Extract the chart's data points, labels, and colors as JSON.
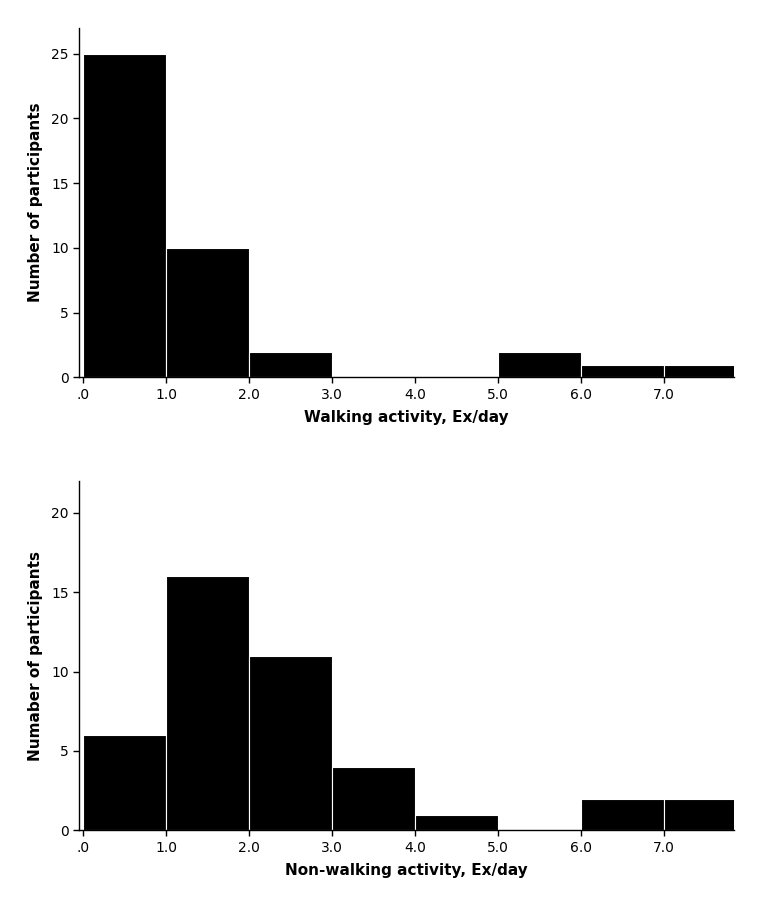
{
  "chart1": {
    "values": [
      25,
      10,
      2,
      0,
      0,
      2,
      1,
      1
    ],
    "xlabel": "Walking activity, Ex/day",
    "ylabel": "Number of participants",
    "ylim": [
      0,
      27
    ],
    "yticks": [
      0,
      5,
      10,
      15,
      20,
      25
    ],
    "xtick_labels": [
      ".0",
      "1.0",
      "2.0",
      "3.0",
      "4.0",
      "5.0",
      "6.0",
      "7.0"
    ],
    "xtick_positions": [
      0,
      1,
      2,
      3,
      4,
      5,
      6,
      7
    ],
    "xlim": [
      -0.05,
      7.85
    ]
  },
  "chart2": {
    "values": [
      6,
      16,
      11,
      4,
      1,
      0,
      2,
      2
    ],
    "xlabel": "Non-walking activity, Ex/day",
    "ylabel": "Numaber of participants",
    "ylim": [
      0,
      22
    ],
    "yticks": [
      0,
      5,
      10,
      15,
      20
    ],
    "xtick_labels": [
      ".0",
      "1.0",
      "2.0",
      "3.0",
      "4.0",
      "5.0",
      "6.0",
      "7.0"
    ],
    "xtick_positions": [
      0,
      1,
      2,
      3,
      4,
      5,
      6,
      7
    ],
    "xlim": [
      -0.05,
      7.85
    ]
  },
  "bar_color": "#000000",
  "bar_edgecolor": "#ffffff",
  "background_color": "#ffffff",
  "font_size_label": 11,
  "font_size_tick": 10,
  "font_family": "Arial"
}
